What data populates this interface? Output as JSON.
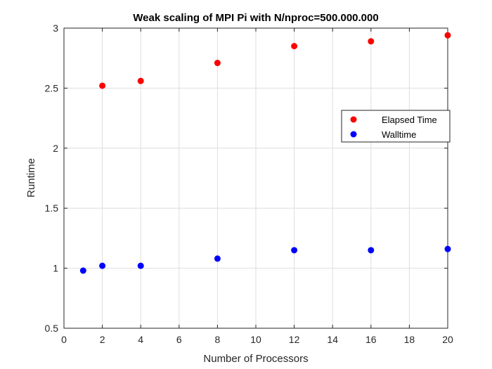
{
  "chart_data": {
    "type": "scatter",
    "title": "Weak scaling of MPI Pi with N/nproc=500.000.000",
    "xlabel": "Number of Processors",
    "ylabel": "Runtime",
    "xlim": [
      0,
      20
    ],
    "ylim": [
      0.5,
      3
    ],
    "xticks": [
      0,
      2,
      4,
      6,
      8,
      10,
      12,
      14,
      16,
      18,
      20
    ],
    "yticks": [
      0.5,
      1,
      1.5,
      2,
      2.5,
      3
    ],
    "xtick_labels": [
      "0",
      "2",
      "4",
      "6",
      "8",
      "10",
      "12",
      "14",
      "16",
      "18",
      "20"
    ],
    "ytick_labels": [
      "0.5",
      "1",
      "1.5",
      "2",
      "2.5",
      "3"
    ],
    "grid": true,
    "legend_position": "right",
    "series": [
      {
        "name": "Elapsed Time",
        "color": "#ff0000",
        "x": [
          2,
          4,
          8,
          12,
          16,
          20
        ],
        "y": [
          2.52,
          2.56,
          2.71,
          2.85,
          2.89,
          2.94
        ]
      },
      {
        "name": "Walltime",
        "color": "#0000ff",
        "x": [
          1,
          2,
          4,
          8,
          12,
          16,
          20
        ],
        "y": [
          0.98,
          1.02,
          1.02,
          1.08,
          1.15,
          1.15,
          1.16
        ]
      }
    ]
  }
}
